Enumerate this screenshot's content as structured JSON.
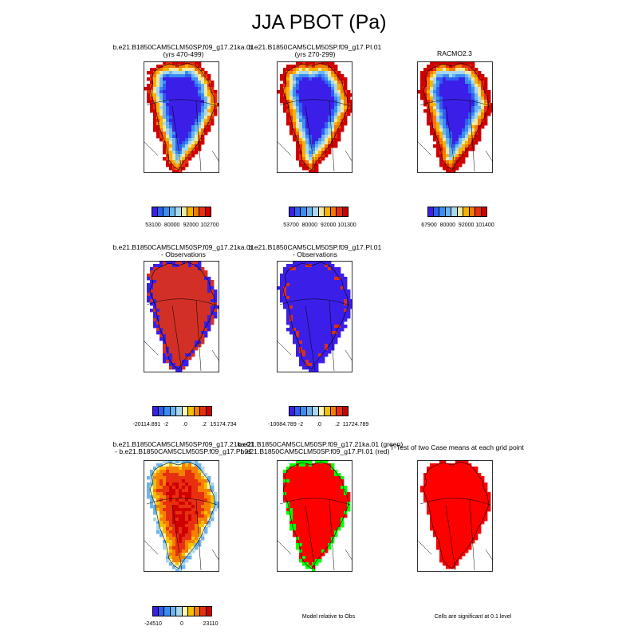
{
  "title": "JJA PBOT (Pa)",
  "panels": [
    {
      "id": "p1",
      "title1": "b.e21.B1850CAM5CLM50SP.f09_g17.21ka.01",
      "title2": "(yrs 470-499)",
      "style": "abs",
      "shift": 0
    },
    {
      "id": "p2",
      "title1": "b.e21.B1850CAM5CLM50SP.f09_g17.PI.01",
      "title2": "(yrs 270-299)",
      "style": "abs",
      "shift": 0.8
    },
    {
      "id": "p3",
      "title1": "RACMO2.3",
      "title2": "",
      "style": "abs",
      "shift": 1.5
    },
    {
      "id": "p4",
      "title1": "b.e21.B1850CAM5CLM50SP.f09_g17.21ka.01",
      "title2": "- Observations",
      "style": "diffHigh"
    },
    {
      "id": "p5",
      "title1": "b.e21.B1850CAM5CLM50SP.f09_g17.PI.01",
      "title2": "- Observations",
      "style": "diffLow"
    },
    {
      "id": "p6",
      "title1": "b.e21.B1850CAM5CLM50SP.f09_g17.21ka.01",
      "title2": "- b.e21.B1850CAM5CLM50SP.f09_g17.PI.01",
      "style": "caseDiff"
    },
    {
      "id": "p7",
      "title1": "b.e21.B1850CAM5CLM50SP.f09_g17.21ka.01 (green)",
      "title2": "b.e21.B1850CAM5CLM50SP.f09_g17.PI.01 (red)",
      "style": "redGreen"
    },
    {
      "id": "p8",
      "title1": "T-Test of two Case means at each grid point",
      "title2": "",
      "style": "allRed"
    }
  ],
  "colorbars": [
    {
      "id": "cb1",
      "labels": [
        "53100",
        "80000",
        "92000",
        "102700"
      ],
      "palette": "abs"
    },
    {
      "id": "cb2",
      "labels": [
        "53700",
        "80000",
        "92000",
        "101300"
      ],
      "palette": "abs"
    },
    {
      "id": "cb3",
      "labels": [
        "67900",
        "80000",
        "92000",
        "101400"
      ],
      "palette": "abs"
    },
    {
      "id": "cb4",
      "labels": [
        "-20114.891",
        "-2",
        ".0",
        ".2",
        "15174.734"
      ],
      "palette": "diff"
    },
    {
      "id": "cb5",
      "labels": [
        "-10084.789",
        "-2",
        ".0",
        ".2",
        "11724.789"
      ],
      "palette": "diff"
    },
    {
      "id": "cb6",
      "labels": [
        "-24510",
        "0",
        "23110"
      ],
      "palette": "diff"
    }
  ],
  "notes": {
    "model_relative": "Model relative to Obs",
    "significance": "Cells are significant at 0.1 level"
  },
  "colors": {
    "abs_palette": [
      "#3b1fe8",
      "#2f5ff0",
      "#3b8ef0",
      "#6cb4f0",
      "#a8d8f0",
      "#f2e8a0",
      "#f5b400",
      "#f57a00",
      "#e83010",
      "#d00000"
    ],
    "diff_palette": [
      "#3b1fe8",
      "#2f5ff0",
      "#3b8ef0",
      "#6cb4f0",
      "#a8d8f0",
      "#fff6b0",
      "#f5c000",
      "#f58000",
      "#e83010",
      "#d00000"
    ],
    "ocean": "#ffffff",
    "sig_red": "#ff0000",
    "sig_green": "#00ff00",
    "diff_red": "#d23026",
    "diff_blue": "#3b1fe8"
  }
}
